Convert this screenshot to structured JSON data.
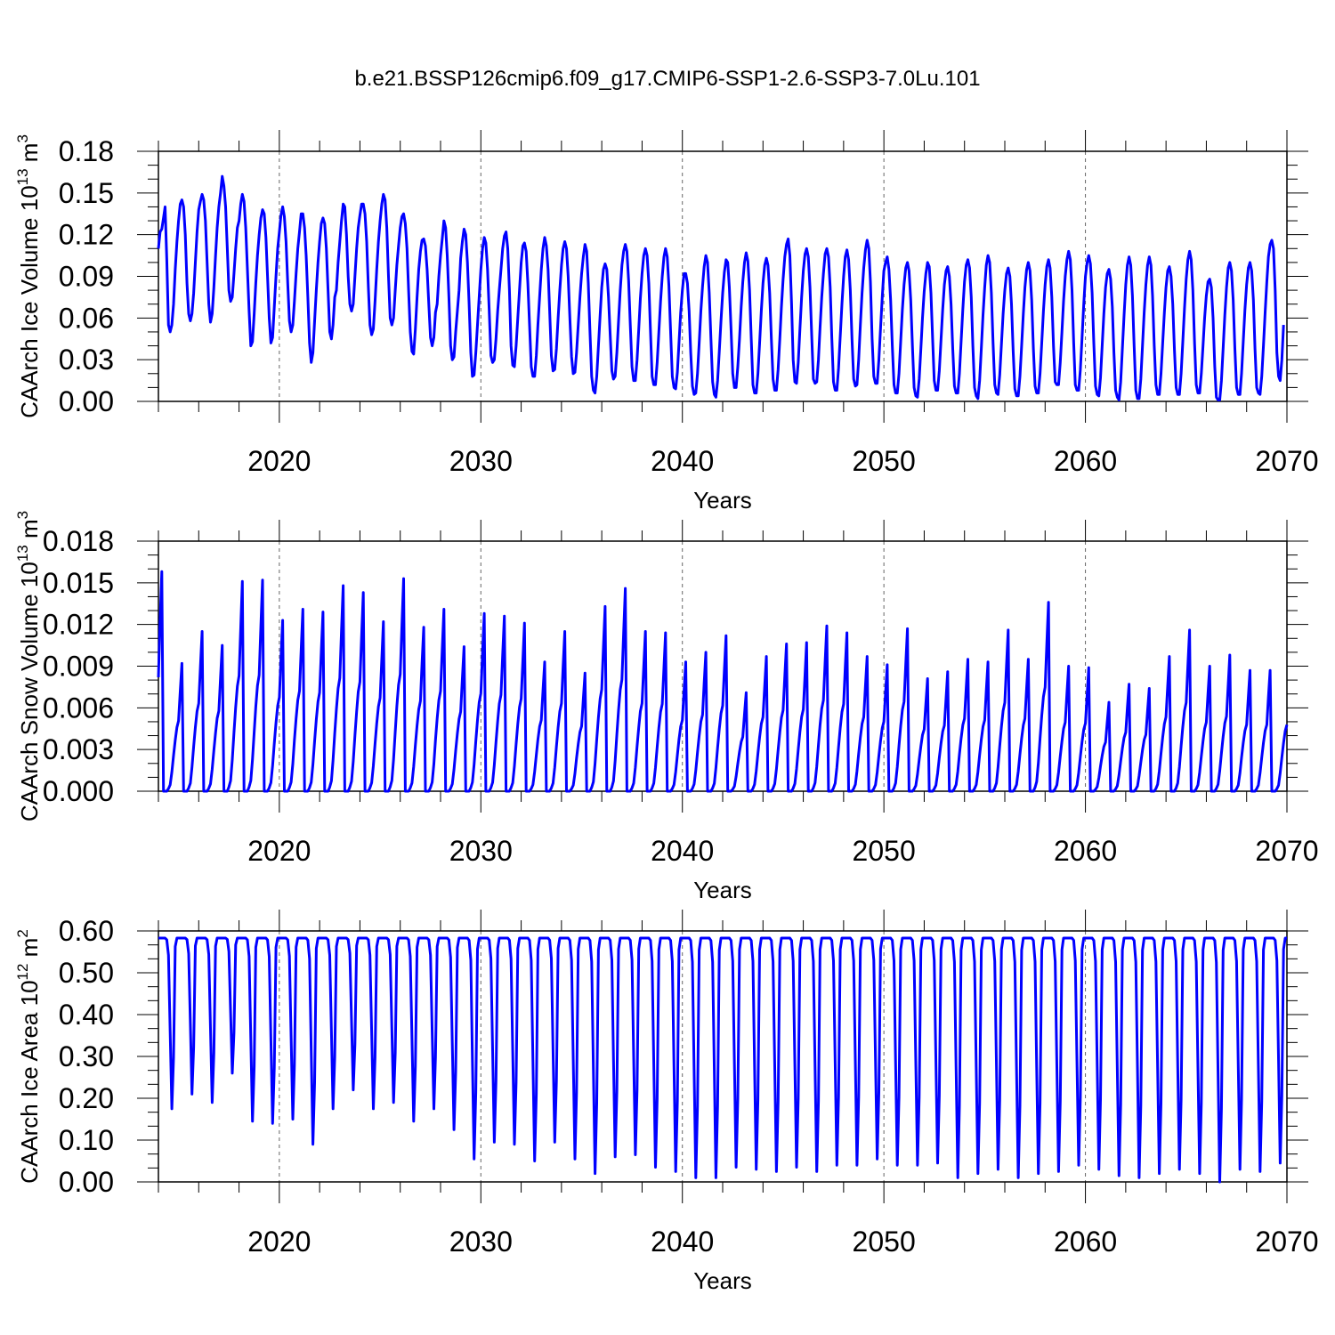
{
  "title": "b.e21.BSSP126cmip6.f09_g17.CMIP6-SSP1-2.6-SSP3-7.0Lu.101",
  "colors": {
    "line": "#0000ff",
    "axis": "#000000",
    "grid": "#666666",
    "background": "#ffffff"
  },
  "chart_data": [
    {
      "type": "line",
      "panel": 1,
      "ylabel_main": "CAArch Ice Volume 10",
      "ylabel_sup": "13",
      "ylabel_unit": " m",
      "ylabel_unit_sup": "3",
      "xlabel": "Years",
      "xlim": [
        2014.0,
        2070.0
      ],
      "ylim": [
        0.0,
        0.18
      ],
      "yticks": [
        "0.00",
        "0.03",
        "0.06",
        "0.09",
        "0.12",
        "0.15",
        "0.18"
      ],
      "yticks_values": [
        0.0,
        0.03,
        0.06,
        0.09,
        0.12,
        0.15,
        0.18
      ],
      "xticks": [
        "2020",
        "2030",
        "2040",
        "2050",
        "2060",
        "2070"
      ],
      "xticks_values": [
        2020,
        2030,
        2040,
        2050,
        2060,
        2070
      ],
      "grid": "vertical dashed at decades",
      "series": [
        {
          "name": "CAArch Ice Volume",
          "x_start": 2014.0,
          "x_step": 0.083333,
          "values": [
            0.11,
            0.122,
            0.124,
            0.132,
            0.14,
            0.102,
            0.055,
            0.05,
            0.055,
            0.07,
            0.095,
            0.115,
            0.13,
            0.142,
            0.145,
            0.14,
            0.12,
            0.085,
            0.063,
            0.058,
            0.063,
            0.078,
            0.1,
            0.122,
            0.138,
            0.144,
            0.149,
            0.145,
            0.13,
            0.1,
            0.07,
            0.057,
            0.063,
            0.082,
            0.105,
            0.125,
            0.14,
            0.15,
            0.162,
            0.155,
            0.14,
            0.11,
            0.08,
            0.072,
            0.075,
            0.092,
            0.11,
            0.125,
            0.13,
            0.142,
            0.149,
            0.144,
            0.125,
            0.095,
            0.065,
            0.04,
            0.043,
            0.063,
            0.085,
            0.105,
            0.12,
            0.132,
            0.138,
            0.135,
            0.118,
            0.09,
            0.06,
            0.042,
            0.046,
            0.068,
            0.09,
            0.11,
            0.122,
            0.134,
            0.14,
            0.133,
            0.115,
            0.085,
            0.058,
            0.05,
            0.055,
            0.072,
            0.092,
            0.11,
            0.122,
            0.135,
            0.135,
            0.125,
            0.105,
            0.075,
            0.042,
            0.028,
            0.035,
            0.058,
            0.08,
            0.1,
            0.115,
            0.128,
            0.132,
            0.128,
            0.11,
            0.08,
            0.05,
            0.045,
            0.055,
            0.075,
            0.08,
            0.1,
            0.115,
            0.13,
            0.142,
            0.14,
            0.12,
            0.09,
            0.07,
            0.065,
            0.07,
            0.09,
            0.11,
            0.125,
            0.134,
            0.142,
            0.142,
            0.135,
            0.115,
            0.082,
            0.055,
            0.048,
            0.052,
            0.072,
            0.095,
            0.115,
            0.13,
            0.142,
            0.149,
            0.145,
            0.125,
            0.09,
            0.06,
            0.055,
            0.06,
            0.08,
            0.098,
            0.112,
            0.125,
            0.133,
            0.135,
            0.128,
            0.11,
            0.08,
            0.05,
            0.036,
            0.034,
            0.052,
            0.075,
            0.095,
            0.108,
            0.116,
            0.117,
            0.112,
            0.095,
            0.07,
            0.046,
            0.04,
            0.046,
            0.064,
            0.07,
            0.09,
            0.105,
            0.117,
            0.13,
            0.125,
            0.105,
            0.075,
            0.04,
            0.03,
            0.032,
            0.05,
            0.065,
            0.08,
            0.103,
            0.115,
            0.124,
            0.12,
            0.1,
            0.07,
            0.035,
            0.018,
            0.019,
            0.035,
            0.055,
            0.075,
            0.095,
            0.11,
            0.118,
            0.114,
            0.095,
            0.065,
            0.033,
            0.028,
            0.03,
            0.045,
            0.065,
            0.08,
            0.095,
            0.11,
            0.119,
            0.122,
            0.11,
            0.08,
            0.04,
            0.026,
            0.025,
            0.04,
            0.06,
            0.08,
            0.1,
            0.112,
            0.114,
            0.108,
            0.085,
            0.055,
            0.025,
            0.018,
            0.018,
            0.033,
            0.055,
            0.075,
            0.095,
            0.11,
            0.118,
            0.112,
            0.095,
            0.065,
            0.033,
            0.022,
            0.023,
            0.038,
            0.06,
            0.08,
            0.098,
            0.11,
            0.115,
            0.11,
            0.09,
            0.06,
            0.032,
            0.02,
            0.021,
            0.035,
            0.055,
            0.075,
            0.092,
            0.104,
            0.113,
            0.108,
            0.085,
            0.05,
            0.018,
            0.008,
            0.006,
            0.018,
            0.04,
            0.062,
            0.082,
            0.095,
            0.099,
            0.095,
            0.075,
            0.048,
            0.022,
            0.016,
            0.018,
            0.035,
            0.058,
            0.08,
            0.098,
            0.108,
            0.113,
            0.108,
            0.087,
            0.055,
            0.025,
            0.015,
            0.015,
            0.03,
            0.052,
            0.074,
            0.092,
            0.105,
            0.11,
            0.105,
            0.085,
            0.05,
            0.018,
            0.012,
            0.012,
            0.028,
            0.05,
            0.072,
            0.09,
            0.104,
            0.11,
            0.104,
            0.083,
            0.05,
            0.018,
            0.01,
            0.009,
            0.021,
            0.042,
            0.064,
            0.08,
            0.092,
            0.092,
            0.085,
            0.065,
            0.035,
            0.011,
            0.005,
            0.006,
            0.02,
            0.042,
            0.065,
            0.083,
            0.097,
            0.105,
            0.1,
            0.078,
            0.045,
            0.014,
            0.005,
            0.003,
            0.015,
            0.036,
            0.058,
            0.078,
            0.093,
            0.102,
            0.1,
            0.082,
            0.052,
            0.02,
            0.01,
            0.01,
            0.025,
            0.045,
            0.068,
            0.086,
            0.1,
            0.107,
            0.101,
            0.08,
            0.045,
            0.012,
            0.006,
            0.006,
            0.02,
            0.042,
            0.065,
            0.085,
            0.098,
            0.103,
            0.098,
            0.078,
            0.045,
            0.016,
            0.008,
            0.008,
            0.023,
            0.045,
            0.068,
            0.088,
            0.104,
            0.113,
            0.117,
            0.105,
            0.07,
            0.03,
            0.014,
            0.013,
            0.028,
            0.052,
            0.075,
            0.094,
            0.106,
            0.11,
            0.104,
            0.082,
            0.048,
            0.016,
            0.013,
            0.014,
            0.03,
            0.053,
            0.075,
            0.092,
            0.106,
            0.11,
            0.104,
            0.082,
            0.046,
            0.014,
            0.008,
            0.008,
            0.024,
            0.047,
            0.07,
            0.09,
            0.104,
            0.109,
            0.102,
            0.08,
            0.045,
            0.016,
            0.011,
            0.012,
            0.03,
            0.055,
            0.078,
            0.096,
            0.109,
            0.116,
            0.11,
            0.086,
            0.045,
            0.018,
            0.013,
            0.013,
            0.03,
            0.053,
            0.075,
            0.094,
            0.1,
            0.104,
            0.095,
            0.073,
            0.04,
            0.012,
            0.006,
            0.006,
            0.02,
            0.043,
            0.066,
            0.084,
            0.096,
            0.1,
            0.094,
            0.073,
            0.04,
            0.01,
            0.004,
            0.003,
            0.016,
            0.038,
            0.06,
            0.079,
            0.092,
            0.1,
            0.097,
            0.078,
            0.045,
            0.015,
            0.008,
            0.008,
            0.022,
            0.044,
            0.066,
            0.084,
            0.094,
            0.097,
            0.09,
            0.07,
            0.038,
            0.011,
            0.006,
            0.006,
            0.02,
            0.043,
            0.066,
            0.086,
            0.098,
            0.102,
            0.096,
            0.075,
            0.04,
            0.01,
            0.004,
            0.002,
            0.015,
            0.038,
            0.062,
            0.082,
            0.098,
            0.105,
            0.1,
            0.078,
            0.042,
            0.012,
            0.006,
            0.005,
            0.019,
            0.041,
            0.063,
            0.08,
            0.092,
            0.096,
            0.09,
            0.07,
            0.036,
            0.009,
            0.004,
            0.004,
            0.018,
            0.04,
            0.063,
            0.082,
            0.095,
            0.1,
            0.094,
            0.073,
            0.038,
            0.011,
            0.006,
            0.006,
            0.02,
            0.042,
            0.065,
            0.084,
            0.097,
            0.102,
            0.096,
            0.075,
            0.04,
            0.014,
            0.012,
            0.012,
            0.028,
            0.05,
            0.072,
            0.09,
            0.102,
            0.108,
            0.102,
            0.08,
            0.042,
            0.012,
            0.008,
            0.008,
            0.023,
            0.046,
            0.07,
            0.09,
            0.1,
            0.105,
            0.099,
            0.078,
            0.042,
            0.011,
            0.005,
            0.004,
            0.017,
            0.04,
            0.063,
            0.082,
            0.092,
            0.095,
            0.088,
            0.068,
            0.035,
            0.008,
            0.003,
            0.001,
            0.014,
            0.038,
            0.062,
            0.084,
            0.098,
            0.104,
            0.098,
            0.076,
            0.04,
            0.008,
            0.002,
            0.002,
            0.016,
            0.04,
            0.064,
            0.084,
            0.098,
            0.104,
            0.098,
            0.076,
            0.04,
            0.012,
            0.005,
            0.005,
            0.02,
            0.042,
            0.064,
            0.082,
            0.094,
            0.097,
            0.09,
            0.07,
            0.037,
            0.01,
            0.005,
            0.005,
            0.02,
            0.043,
            0.067,
            0.088,
            0.102,
            0.108,
            0.102,
            0.08,
            0.042,
            0.012,
            0.006,
            0.006,
            0.02,
            0.04,
            0.06,
            0.076,
            0.086,
            0.088,
            0.082,
            0.06,
            0.025,
            0.003,
            0.001,
            0.001,
            0.015,
            0.038,
            0.062,
            0.082,
            0.096,
            0.1,
            0.094,
            0.073,
            0.038,
            0.01,
            0.005,
            0.005,
            0.02,
            0.043,
            0.066,
            0.084,
            0.096,
            0.1,
            0.094,
            0.073,
            0.038,
            0.01,
            0.006,
            0.005,
            0.018,
            0.04,
            0.064,
            0.086,
            0.104,
            0.113,
            0.116,
            0.11,
            0.08,
            0.035,
            0.018,
            0.015,
            0.03,
            0.055
          ]
        }
      ]
    },
    {
      "type": "line",
      "panel": 2,
      "ylabel_main": "CAArch Snow Volume 10",
      "ylabel_sup": "13",
      "ylabel_unit": " m",
      "ylabel_unit_sup": "3",
      "xlabel": "Years",
      "xlim": [
        2014.0,
        2070.0
      ],
      "ylim": [
        0.0,
        0.018
      ],
      "yticks": [
        "0.000",
        "0.003",
        "0.006",
        "0.009",
        "0.012",
        "0.015",
        "0.018"
      ],
      "yticks_values": [
        0.0,
        0.003,
        0.006,
        0.009,
        0.012,
        0.015,
        0.018
      ],
      "xticks": [
        "2020",
        "2030",
        "2040",
        "2050",
        "2060",
        "2070"
      ],
      "xticks_values": [
        2020,
        2030,
        2040,
        2050,
        2060,
        2070
      ],
      "grid": "vertical dashed at decades",
      "series": [
        {
          "name": "CAArch Snow Volume",
          "annual_peaks": [
            0.0158,
            0.0092,
            0.0115,
            0.0105,
            0.0151,
            0.0152,
            0.0123,
            0.0131,
            0.0129,
            0.0148,
            0.0143,
            0.0122,
            0.0153,
            0.0118,
            0.0131,
            0.0104,
            0.0128,
            0.0126,
            0.0121,
            0.0093,
            0.0115,
            0.0085,
            0.0133,
            0.0146,
            0.0115,
            0.0114,
            0.0093,
            0.01,
            0.0112,
            0.0071,
            0.0097,
            0.0106,
            0.0107,
            0.0119,
            0.0114,
            0.0097,
            0.0091,
            0.0117,
            0.0081,
            0.0086,
            0.0095,
            0.0093,
            0.0116,
            0.0095,
            0.0136,
            0.009,
            0.0089,
            0.0064,
            0.0077,
            0.0074,
            0.0097,
            0.0116,
            0.009,
            0.0098,
            0.0087
          ],
          "peak_month": 5,
          "minimum": 0.0,
          "x_start": 2014.0,
          "x_step": 0.083333
        }
      ]
    },
    {
      "type": "line",
      "panel": 3,
      "ylabel_main": "CAArch Ice Area 10",
      "ylabel_sup": "12",
      "ylabel_unit": " m",
      "ylabel_unit_sup": "2",
      "xlabel": "Years",
      "xlim": [
        2014.0,
        2070.0
      ],
      "ylim": [
        0.0,
        0.6
      ],
      "yticks": [
        "0.00",
        "0.10",
        "0.20",
        "0.30",
        "0.40",
        "0.50",
        "0.60"
      ],
      "yticks_values": [
        0.0,
        0.1,
        0.2,
        0.3,
        0.4,
        0.5,
        0.6
      ],
      "xticks": [
        "2020",
        "2030",
        "2040",
        "2050",
        "2060",
        "2070"
      ],
      "xticks_values": [
        2020,
        2030,
        2040,
        2050,
        2060,
        2070
      ],
      "grid": "vertical dashed at decades",
      "series": [
        {
          "name": "CAArch Ice Area",
          "annual_maximum": 0.583,
          "annual_minima": [
            0.175,
            0.21,
            0.19,
            0.26,
            0.145,
            0.14,
            0.15,
            0.09,
            0.175,
            0.22,
            0.175,
            0.19,
            0.145,
            0.175,
            0.125,
            0.055,
            0.095,
            0.09,
            0.05,
            0.095,
            0.055,
            0.02,
            0.06,
            0.065,
            0.035,
            0.025,
            0.01,
            0.01,
            0.035,
            0.03,
            0.025,
            0.035,
            0.025,
            0.04,
            0.04,
            0.055,
            0.04,
            0.04,
            0.045,
            0.01,
            0.02,
            0.03,
            0.01,
            0.02,
            0.025,
            0.04,
            0.03,
            0.015,
            0.01,
            0.02,
            0.03,
            0.02,
            0.0,
            0.03,
            0.025,
            0.045
          ],
          "x_start": 2014.0,
          "x_step": 0.083333
        }
      ]
    }
  ]
}
